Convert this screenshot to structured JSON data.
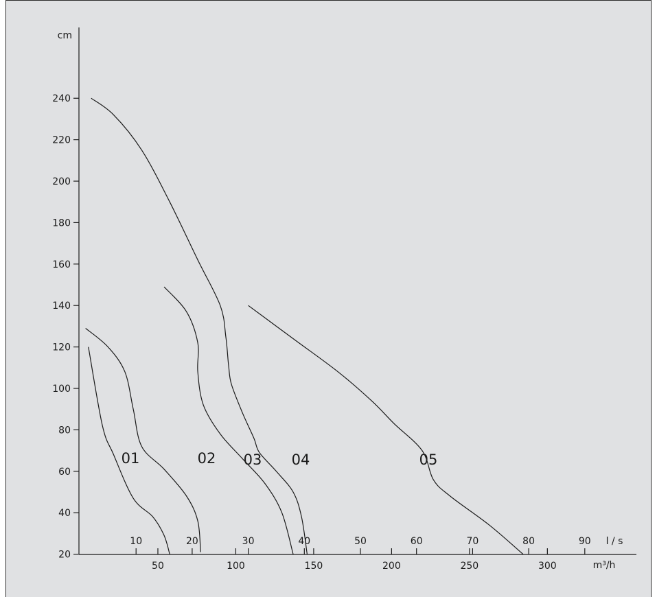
{
  "chart_data": {
    "type": "line",
    "y_axis": {
      "unit_label": "cm",
      "ticks": [
        20,
        40,
        60,
        80,
        100,
        120,
        140,
        160,
        180,
        200,
        220,
        240
      ],
      "range": [
        0,
        250
      ]
    },
    "x_axis_ls": {
      "unit_label": "l / s",
      "ticks": [
        10,
        20,
        30,
        40,
        50,
        60,
        70,
        80,
        90
      ]
    },
    "x_axis_m3h": {
      "unit_label": "m³/h",
      "ticks": [
        50,
        100,
        150,
        200,
        250,
        300
      ]
    },
    "x_range_ls": [
      0,
      92
    ],
    "series": [
      {
        "name": "01",
        "x_unit": "l/s",
        "points": [
          [
            1.5,
            120
          ],
          [
            4,
            82
          ],
          [
            6,
            68
          ],
          [
            9.5,
            47
          ],
          [
            13,
            38
          ],
          [
            15,
            29
          ],
          [
            16,
            20
          ]
        ]
      },
      {
        "name": "02",
        "x_unit": "l/s",
        "points": [
          [
            1,
            129
          ],
          [
            5,
            120
          ],
          [
            8,
            108
          ],
          [
            9.5,
            90
          ],
          [
            11,
            72
          ],
          [
            15,
            61
          ],
          [
            19,
            48
          ],
          [
            21,
            36
          ],
          [
            21.5,
            21
          ]
        ]
      },
      {
        "name": "03",
        "x_unit": "l/s",
        "points": [
          [
            15,
            149
          ],
          [
            19,
            137
          ],
          [
            21,
            122
          ],
          [
            21,
            108
          ],
          [
            22,
            92
          ],
          [
            25,
            78
          ],
          [
            29,
            66
          ],
          [
            33,
            54
          ],
          [
            36,
            40
          ],
          [
            38,
            20
          ]
        ]
      },
      {
        "name": "04",
        "x_unit": "l/s",
        "points": [
          [
            2,
            240
          ],
          [
            6,
            232
          ],
          [
            11,
            215
          ],
          [
            16,
            190
          ],
          [
            21,
            162
          ],
          [
            25,
            140
          ],
          [
            26,
            125
          ],
          [
            26.5,
            111
          ],
          [
            27,
            102
          ],
          [
            29,
            88
          ],
          [
            31,
            76
          ],
          [
            32,
            69
          ],
          [
            35,
            60
          ],
          [
            38,
            50
          ],
          [
            39.5,
            38
          ],
          [
            40.5,
            20
          ]
        ]
      },
      {
        "name": "05",
        "x_unit": "l/s",
        "points": [
          [
            30,
            140
          ],
          [
            38,
            124
          ],
          [
            46,
            108
          ],
          [
            52,
            94
          ],
          [
            56,
            83
          ],
          [
            61,
            70
          ],
          [
            63,
            56
          ],
          [
            66,
            48
          ],
          [
            73,
            34
          ],
          [
            79,
            20
          ]
        ]
      }
    ],
    "curve_labels": [
      "01",
      "02",
      "03",
      "04",
      "05"
    ]
  }
}
